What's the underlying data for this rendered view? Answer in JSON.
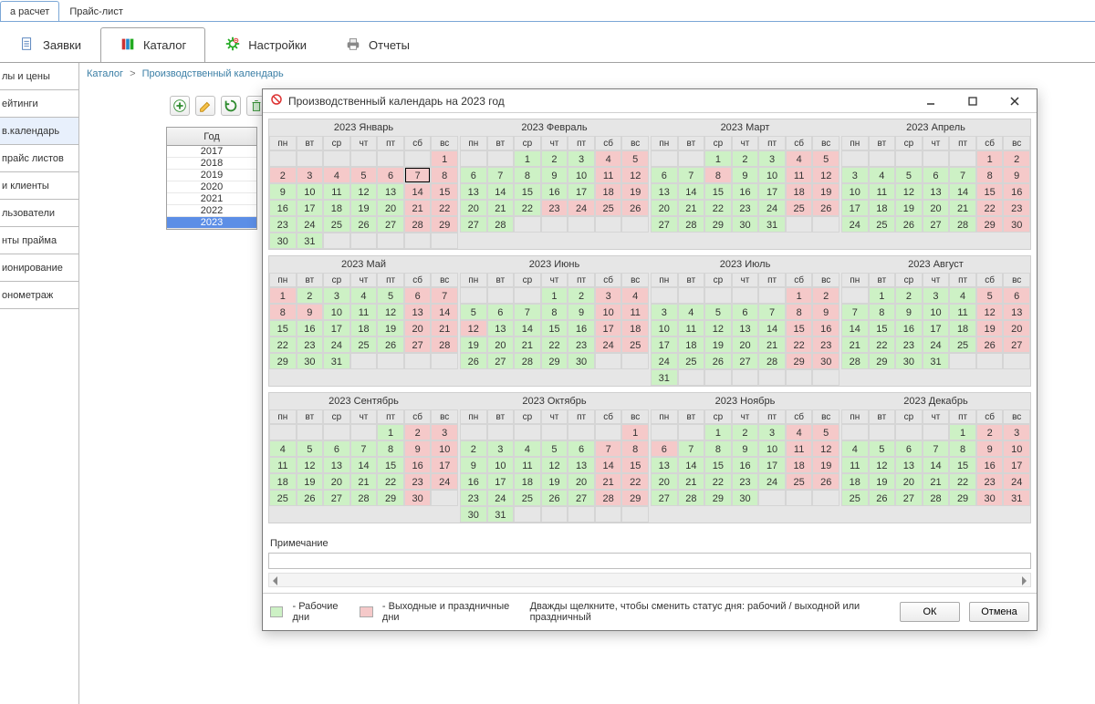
{
  "top_tabs": [
    {
      "label": "а расчет",
      "active": true
    },
    {
      "label": "Прайс-лист",
      "active": false
    }
  ],
  "main_tabs": [
    {
      "label": "Заявки",
      "icon": "doc"
    },
    {
      "label": "Каталог",
      "icon": "books",
      "active": true
    },
    {
      "label": "Настройки",
      "icon": "gear"
    },
    {
      "label": "Отчеты",
      "icon": "printer"
    }
  ],
  "breadcrumb": {
    "root": "Каталог",
    "current": "Производственный календарь"
  },
  "sidebar": [
    "лы и цены",
    "ейтинги",
    "в.календарь",
    "прайс листов",
    "и клиенты",
    "льзователи",
    "нты прайма",
    "ионирование",
    "онометраж"
  ],
  "sidebar_active": 2,
  "year_panel": {
    "header": "Год",
    "years": [
      "2017",
      "2018",
      "2019",
      "2020",
      "2021",
      "2022",
      "2023"
    ],
    "selected": "2023"
  },
  "dialog": {
    "title": "Производственный календарь на 2023 год",
    "dow": [
      "пн",
      "вт",
      "ср",
      "чт",
      "пт",
      "сб",
      "вс"
    ],
    "today": {
      "month": 0,
      "day": 7
    },
    "months": [
      {
        "title": "2023 Январь",
        "start": 6,
        "len": 31,
        "off": [
          1,
          2,
          3,
          4,
          5,
          6,
          7,
          8,
          14,
          15,
          21,
          22,
          28,
          29
        ]
      },
      {
        "title": "2023 Февраль",
        "start": 2,
        "len": 28,
        "off": [
          4,
          5,
          11,
          12,
          18,
          19,
          23,
          24,
          25,
          26
        ]
      },
      {
        "title": "2023 Март",
        "start": 2,
        "len": 31,
        "off": [
          4,
          5,
          8,
          11,
          12,
          18,
          19,
          25,
          26
        ]
      },
      {
        "title": "2023 Апрель",
        "start": 5,
        "len": 30,
        "off": [
          1,
          2,
          8,
          9,
          15,
          16,
          22,
          23,
          29,
          30
        ]
      },
      {
        "title": "2023 Май",
        "start": 0,
        "len": 31,
        "off": [
          1,
          6,
          7,
          8,
          9,
          13,
          14,
          20,
          21,
          27,
          28
        ]
      },
      {
        "title": "2023 Июнь",
        "start": 3,
        "len": 30,
        "off": [
          3,
          4,
          10,
          11,
          12,
          17,
          18,
          24,
          25
        ]
      },
      {
        "title": "2023 Июль",
        "start": 5,
        "len": 31,
        "off": [
          1,
          2,
          8,
          9,
          15,
          16,
          22,
          23,
          29,
          30
        ]
      },
      {
        "title": "2023 Август",
        "start": 1,
        "len": 31,
        "off": [
          5,
          6,
          12,
          13,
          19,
          20,
          26,
          27
        ]
      },
      {
        "title": "2023 Сентябрь",
        "start": 4,
        "len": 30,
        "off": [
          2,
          3,
          9,
          10,
          16,
          17,
          23,
          24,
          30
        ]
      },
      {
        "title": "2023 Октябрь",
        "start": 6,
        "len": 31,
        "off": [
          1,
          7,
          8,
          14,
          15,
          21,
          22,
          28,
          29
        ]
      },
      {
        "title": "2023 Ноябрь",
        "start": 2,
        "len": 30,
        "off": [
          4,
          5,
          6,
          11,
          12,
          18,
          19,
          25,
          26
        ]
      },
      {
        "title": "2023 Декабрь",
        "start": 4,
        "len": 31,
        "off": [
          2,
          3,
          9,
          10,
          16,
          17,
          23,
          24,
          30,
          31
        ]
      }
    ],
    "note_label": "Примечание",
    "legend": {
      "work": {
        "color": "#cdf1c5",
        "label": "- Рабочие дни"
      },
      "off": {
        "color": "#f5c9c9",
        "label": "- Выходные и праздничные дни"
      },
      "hint": "Дважды щелкните, чтобы сменить статус дня: рабочий / выходной или праздничный"
    },
    "buttons": {
      "ok": "ОК",
      "cancel": "Отмена"
    }
  }
}
